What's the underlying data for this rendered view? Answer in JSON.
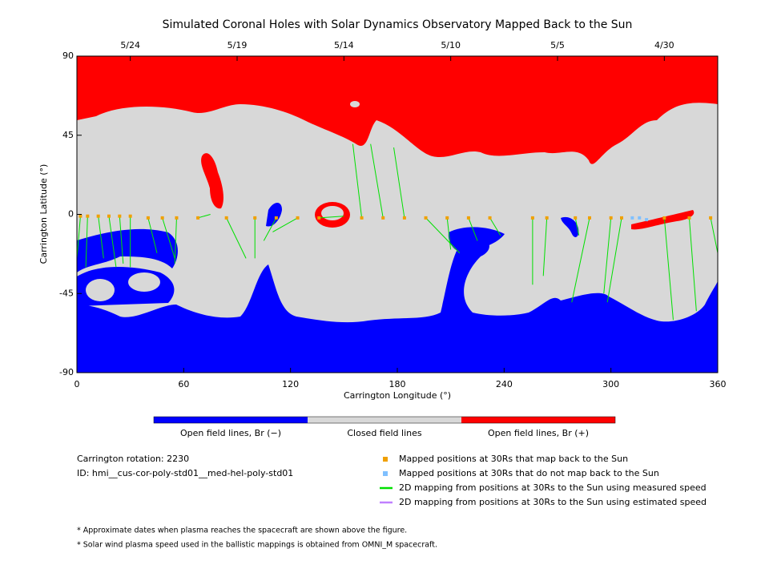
{
  "chart_data": {
    "type": "map",
    "title": "Simulated Coronal Holes with Solar Dynamics Observatory Mapped Back to the Sun",
    "xlabel": "Carrington Longitude (°)",
    "ylabel": "Carrington Latitude (°)",
    "xlim": [
      0,
      360
    ],
    "ylim": [
      -90,
      90
    ],
    "xticks": [
      0,
      60,
      120,
      180,
      240,
      300,
      360
    ],
    "yticks": [
      -90,
      -45,
      0,
      45,
      90
    ],
    "x2ticks": [
      {
        "value": 30,
        "label": "5/24"
      },
      {
        "value": 90,
        "label": "5/19"
      },
      {
        "value": 150,
        "label": "5/14"
      },
      {
        "value": 210,
        "label": "5/10"
      },
      {
        "value": 270,
        "label": "5/5"
      },
      {
        "value": 330,
        "label": "4/30"
      }
    ],
    "colorbar": [
      {
        "label": "Open field lines, Br (−)",
        "color": "#0000ff"
      },
      {
        "label": "Closed field lines",
        "color": "#d8d8d8"
      },
      {
        "label": "Open field lines, Br (+)",
        "color": "#ff0000"
      }
    ],
    "series": [
      {
        "name": "Mapped positions at 30Rs that map back to the Sun",
        "color": "#f0a000",
        "x": [
          2,
          6,
          12,
          18,
          24,
          30,
          40,
          48,
          56,
          68,
          84,
          100,
          112,
          124,
          136,
          160,
          172,
          184,
          196,
          208,
          220,
          232,
          256,
          264,
          280,
          288,
          300,
          306,
          330,
          344,
          356
        ],
        "y": [
          -1,
          -1,
          -1,
          -1,
          -1,
          -1,
          -2,
          -2,
          -2,
          -2,
          -2,
          -2,
          -2,
          -2,
          -2,
          -2,
          -2,
          -2,
          -2,
          -2,
          -2,
          -2,
          -2,
          -2,
          -2,
          -2,
          -2,
          -2,
          -2,
          -2,
          -2
        ]
      },
      {
        "name": "Mapped positions at 30Rs that do not map back to the Sun",
        "color": "#80c0ff",
        "x": [
          312,
          316,
          320
        ],
        "y": [
          -2,
          -2,
          -3
        ]
      },
      {
        "name": "2D mapping from positions at 30Rs to the Sun using measured speed",
        "color": "#00e000",
        "x": [
          0,
          5,
          15,
          22,
          26,
          30,
          45,
          55,
          55,
          75,
          95,
          100,
          105,
          110,
          150,
          155,
          165,
          178,
          215,
          210,
          225,
          238,
          256,
          262,
          282,
          278,
          296,
          298,
          335,
          348,
          360
        ],
        "y": [
          -25,
          -30,
          -25,
          -30,
          -28,
          -30,
          -22,
          -25,
          -28,
          0,
          -25,
          -25,
          -15,
          -10,
          -1,
          40,
          40,
          38,
          -22,
          -20,
          -15,
          -12,
          -40,
          -35,
          -12,
          -50,
          -45,
          -50,
          -60,
          -55,
          -22
        ]
      },
      {
        "name": "2D mapping from positions at 30Rs to the Sun using estimated speed",
        "color": "#c080ff",
        "x": [],
        "y": []
      }
    ],
    "info": [
      "Carrington rotation: 2230",
      "ID: hmi__cus-cor-poly-std01__med-hel-poly-std01"
    ],
    "footnotes": [
      "* Approximate dates when plasma reaches the spacecraft are shown above the figure.",
      "* Solar wind plasma speed used in the ballistic mappings is obtained from OMNI_M spacecraft."
    ]
  }
}
